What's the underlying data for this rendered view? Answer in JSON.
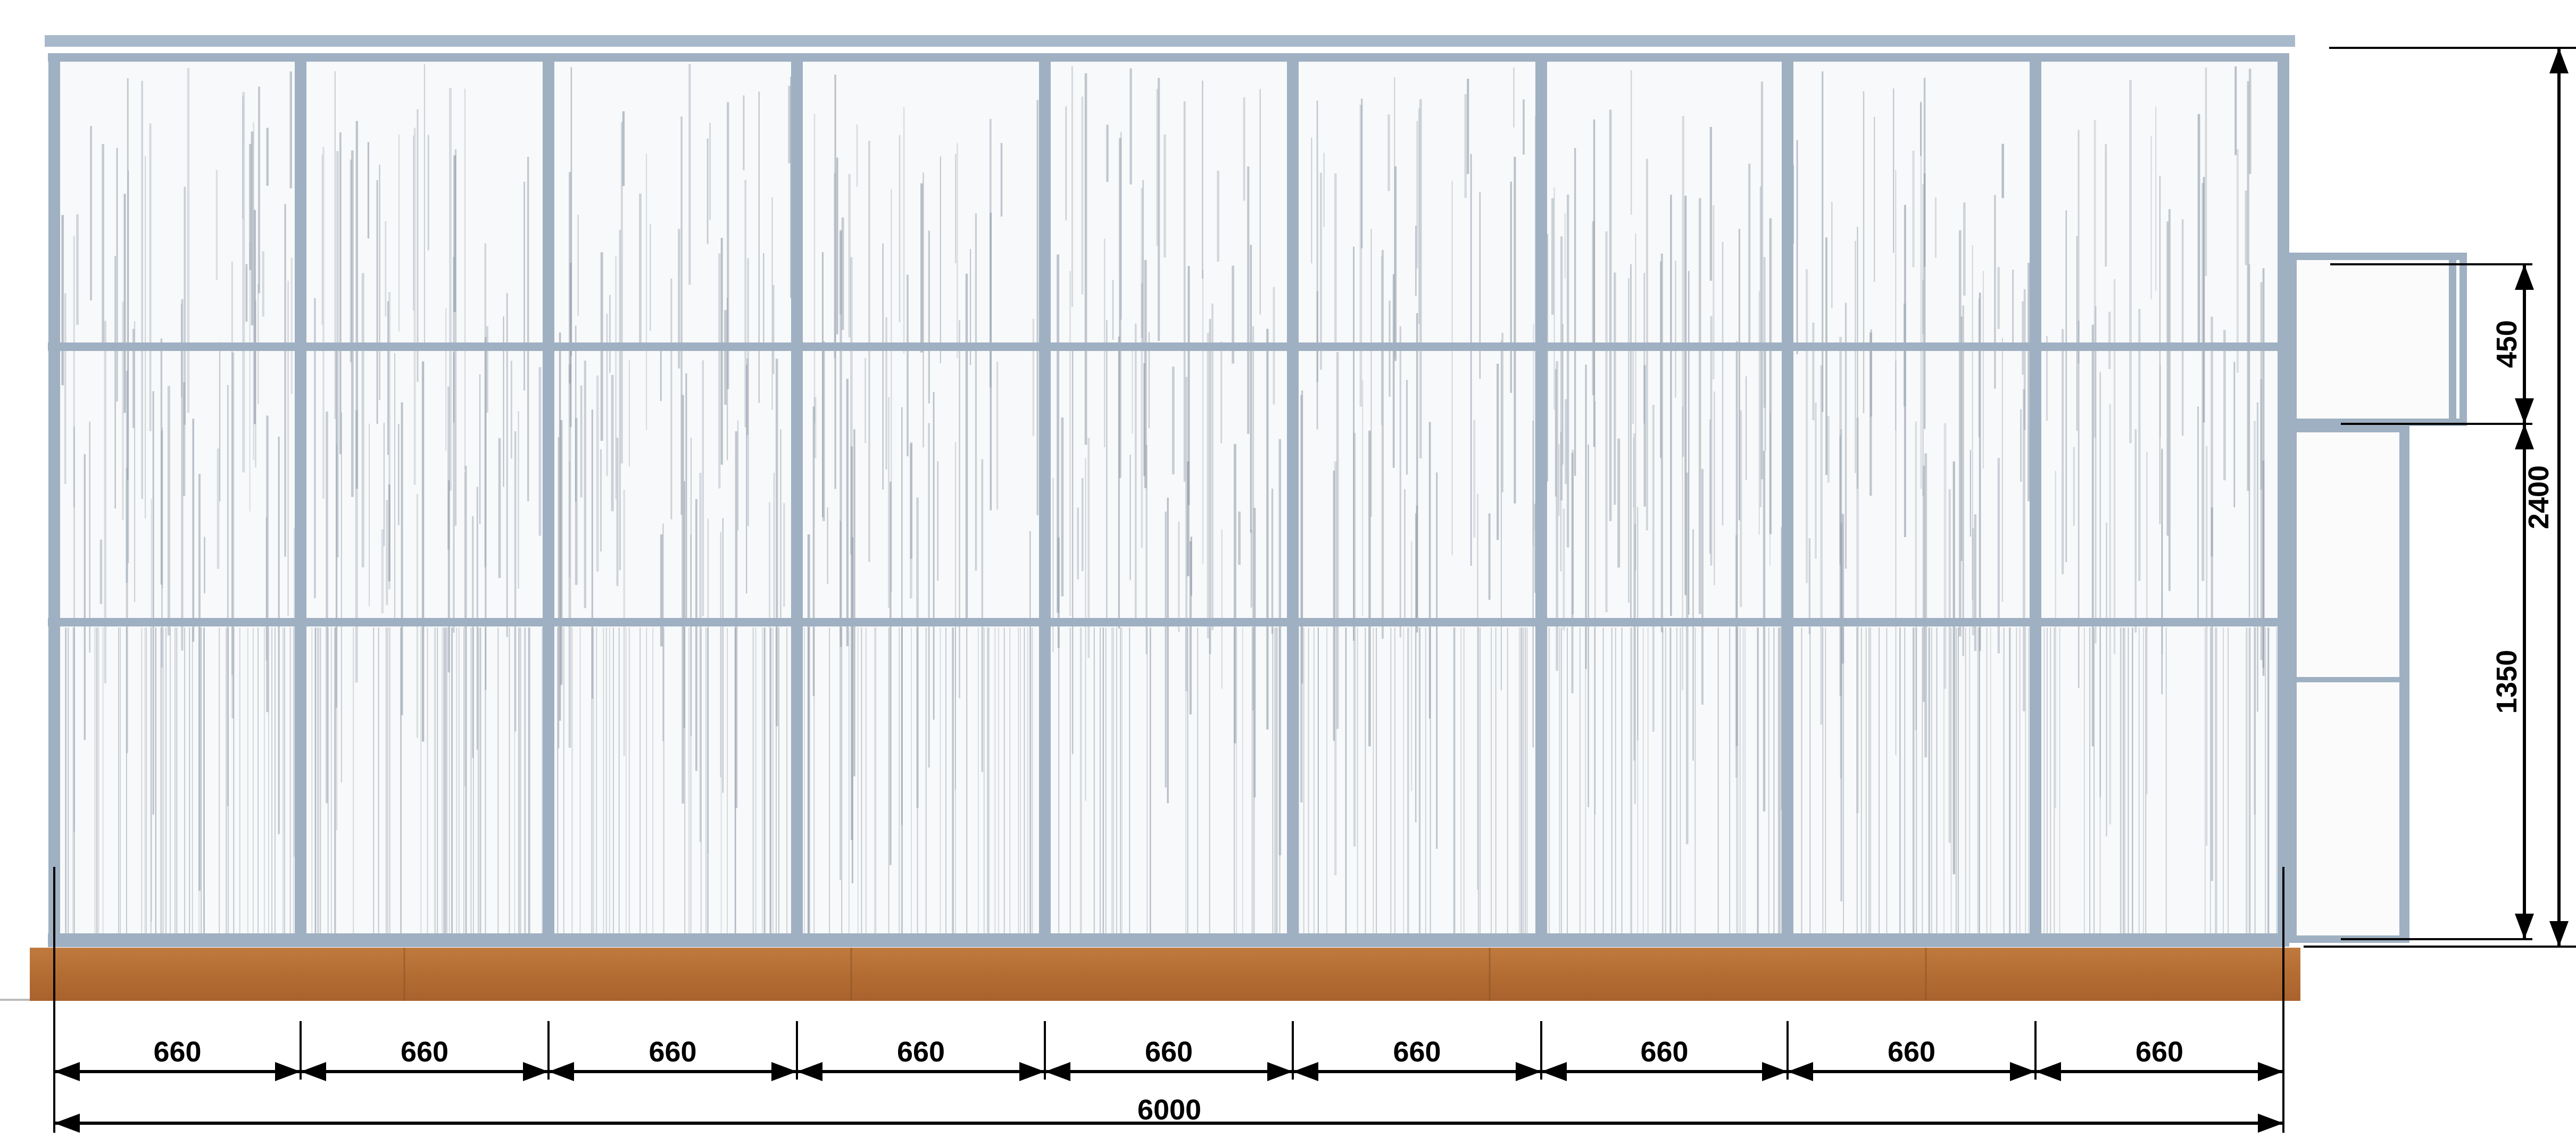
{
  "drawing": {
    "bay_count": 9,
    "bay_widths": [
      "660",
      "660",
      "660",
      "660",
      "660",
      "660",
      "660",
      "660",
      "660"
    ],
    "total_width": "6000",
    "total_height": "2400",
    "window_height": "450",
    "door_height": "1350"
  },
  "colors": {
    "frame": "#9fb0c2",
    "frame_dark": "#7f90a3",
    "panel": "#f7f8f9",
    "wood": "#b8733a",
    "wood_dark": "#8e5426",
    "dimension": "#000000"
  }
}
